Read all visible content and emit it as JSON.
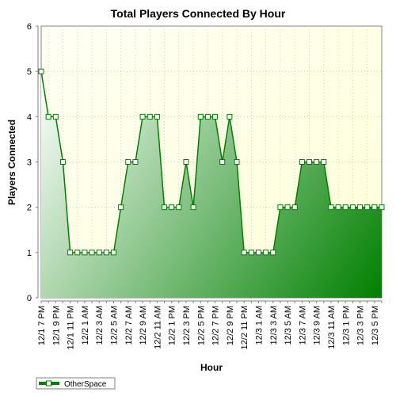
{
  "chart_data": {
    "type": "area",
    "title": "Total Players Connected By Hour",
    "xlabel": "Hour",
    "ylabel": "Players Connected",
    "ylim": [
      0,
      6
    ],
    "yticks": [
      "0",
      "1",
      "2",
      "3",
      "4",
      "5",
      "6"
    ],
    "grid": true,
    "legend_position": "bottom-left",
    "x_tick_labels": [
      "12/1 7 PM",
      "12/1 9 PM",
      "12/1 11 PM",
      "12/2 1 AM",
      "12/2 3 AM",
      "12/2 5 AM",
      "12/2 7 AM",
      "12/2 9 AM",
      "12/2 11 AM",
      "12/2 1 PM",
      "12/2 3 PM",
      "12/2 5 PM",
      "12/2 7 PM",
      "12/2 9 PM",
      "12/2 11 PM",
      "12/3 1 AM",
      "12/3 3 AM",
      "12/3 5 AM",
      "12/3 7 AM",
      "12/3 9 AM",
      "12/3 11 AM",
      "12/3 1 PM",
      "12/3 3 PM",
      "12/3 5 PM"
    ],
    "series": [
      {
        "name": "OtherSpace",
        "values": [
          5,
          4,
          4,
          3,
          1,
          1,
          1,
          1,
          1,
          1,
          1,
          2,
          3,
          3,
          4,
          4,
          4,
          2,
          2,
          2,
          3,
          2,
          4,
          4,
          4,
          3,
          4,
          3,
          1,
          1,
          1,
          1,
          1,
          2,
          2,
          2,
          3,
          3,
          3,
          3,
          2,
          2,
          2,
          2,
          2,
          2,
          2,
          2
        ]
      }
    ],
    "colors": {
      "line": "#008000",
      "area_light": "#ffffff",
      "area_dark": "#008000",
      "plot_bg_light": "#ffffe0",
      "grid": "#c8c8a0"
    }
  }
}
